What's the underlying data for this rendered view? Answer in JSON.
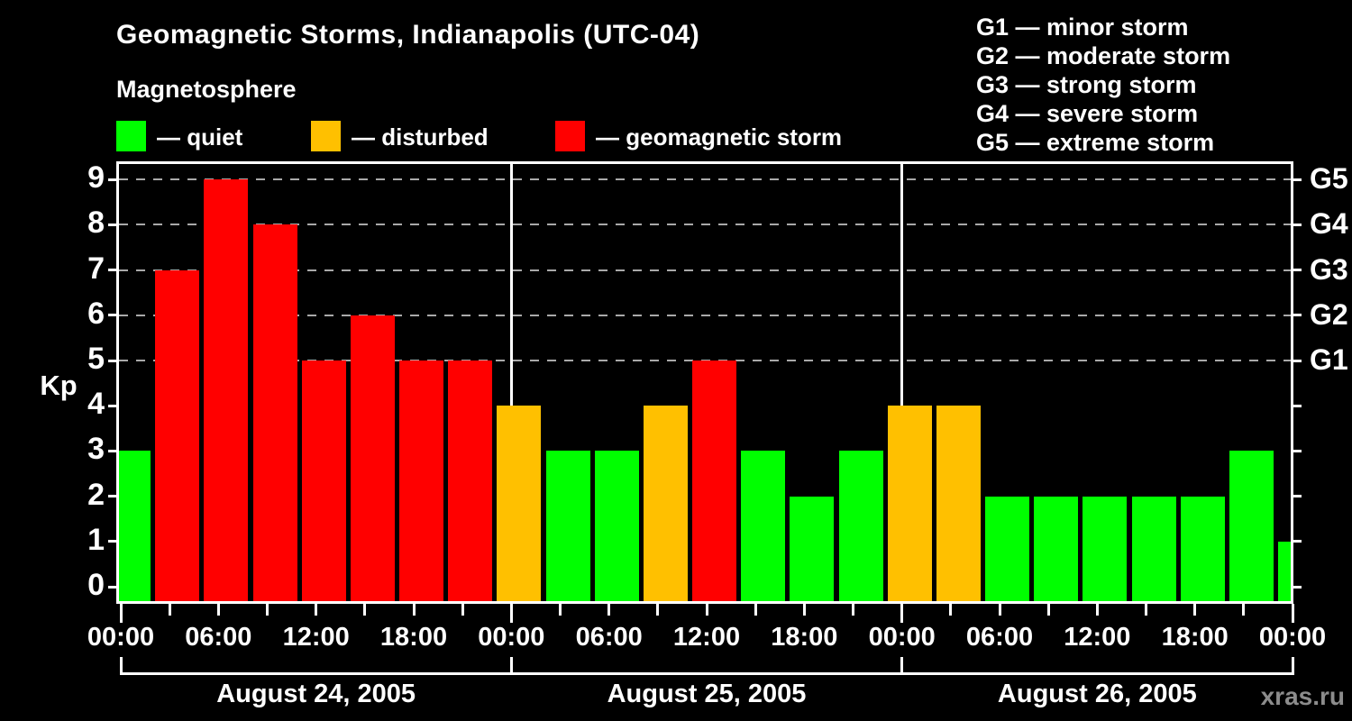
{
  "header": {
    "title": "Geomagnetic Storms, Indianapolis (UTC-04)",
    "subtitle": "Magnetosphere"
  },
  "kp_legend": [
    {
      "key": "quiet",
      "label": "— quiet",
      "color": "#00ff00"
    },
    {
      "key": "disturbed",
      "label": "— disturbed",
      "color": "#ffc000"
    },
    {
      "key": "storm",
      "label": "— geomagnetic storm",
      "color": "#ff0000"
    }
  ],
  "g_legend": [
    "G1 — minor storm",
    "G2 — moderate storm",
    "G3 — strong storm",
    "G4 — severe storm",
    "G5 — extreme storm"
  ],
  "axes": {
    "y_title": "Kp",
    "y_ticks": [
      0,
      1,
      2,
      3,
      4,
      5,
      6,
      7,
      8,
      9
    ],
    "right_labels": [
      {
        "value": 5,
        "label": "G1"
      },
      {
        "value": 6,
        "label": "G2"
      },
      {
        "value": 7,
        "label": "G3"
      },
      {
        "value": 8,
        "label": "G4"
      },
      {
        "value": 9,
        "label": "G5"
      }
    ],
    "x_labels": [
      "00:00",
      "06:00",
      "12:00",
      "18:00",
      "00:00",
      "06:00",
      "12:00",
      "18:00",
      "00:00",
      "06:00",
      "12:00",
      "18:00",
      "00:00"
    ]
  },
  "footer": {
    "watermark": "xras.ru"
  },
  "chart_data": {
    "type": "bar",
    "title": "Geomagnetic Storms, Indianapolis (UTC-04)",
    "ylabel": "Kp",
    "ylim": [
      0,
      9.4
    ],
    "interval_hours": 3,
    "gridlines_at": [
      5,
      6,
      7,
      8,
      9
    ],
    "legend_position": "top-left",
    "days": [
      {
        "date": "August 24, 2005",
        "values": [
          3,
          7,
          9,
          8,
          5,
          6,
          5,
          5
        ]
      },
      {
        "date": "August 25, 2005",
        "values": [
          4,
          3,
          3,
          4,
          5,
          3,
          2,
          3
        ]
      },
      {
        "date": "August 26, 2005",
        "values": [
          4,
          4,
          2,
          2,
          2,
          2,
          2,
          3
        ]
      }
    ],
    "partial_last_bar": {
      "value": 1
    },
    "color_rule": {
      "quiet": "Kp <= 3",
      "disturbed": "Kp = 4",
      "storm": "Kp >= 5"
    },
    "colors": {
      "quiet": "#00ff00",
      "disturbed": "#ffc000",
      "storm": "#ff0000"
    }
  }
}
